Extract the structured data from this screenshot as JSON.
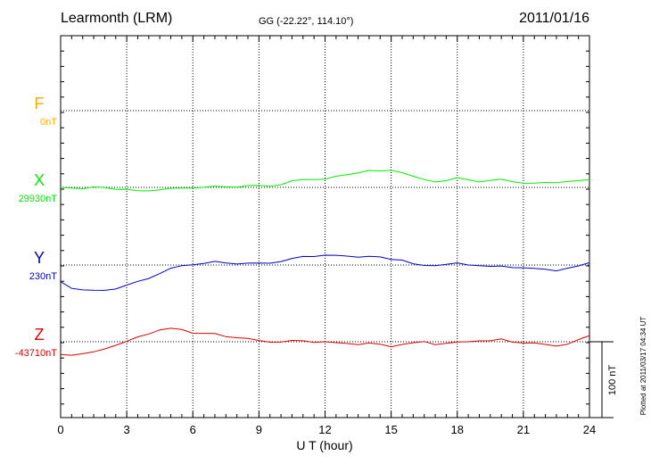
{
  "header": {
    "station": "Learmonth (LRM)",
    "coords": "GG (-22.22°, 114.10°)",
    "date": "2011/01/16"
  },
  "footer": {
    "plotted_note": "Plotted at 2011/03/17 04:34 UT"
  },
  "colors": {
    "F": "#ffaa00",
    "X": "#00ee00",
    "Y": "#0000cc",
    "Z": "#dd0000",
    "axis": "#000000",
    "grid": "#000000"
  },
  "chart_data": {
    "type": "line",
    "xlabel": "U T (hour)",
    "xlim": [
      0,
      24
    ],
    "x_ticks": [
      "0",
      "3",
      "6",
      "9",
      "12",
      "15",
      "18",
      "21",
      "24"
    ],
    "grid": true,
    "scale_bar_label": "100 nT",
    "series": [
      {
        "name": "F",
        "baseline_label": "0nT",
        "x": [],
        "y": []
      },
      {
        "name": "X",
        "baseline_label": "29930nT",
        "x": [
          0,
          0.5,
          1,
          1.5,
          2,
          2.5,
          3,
          3.5,
          4,
          4.5,
          5,
          5.5,
          6,
          6.5,
          7,
          7.5,
          8,
          8.5,
          9,
          9.5,
          10,
          10.5,
          11,
          11.5,
          12,
          12.5,
          13,
          13.5,
          14,
          14.5,
          15,
          15.5,
          16,
          16.5,
          17,
          17.5,
          18,
          18.5,
          19,
          19.5,
          20,
          20.5,
          21,
          21.5,
          22,
          22.5,
          23,
          23.5,
          24
        ],
        "y": [
          0,
          0,
          -2,
          0,
          0,
          -2,
          -3,
          -5,
          -4,
          -3,
          -2,
          -1,
          0,
          0,
          1,
          1,
          1,
          2,
          2,
          2,
          4,
          8,
          10,
          11,
          11,
          14,
          17,
          20,
          22,
          21,
          23,
          20,
          14,
          10,
          8,
          9,
          12,
          10,
          8,
          9,
          10,
          8,
          6,
          5,
          6,
          7,
          8,
          8,
          10
        ]
      },
      {
        "name": "Y",
        "baseline_label": "230nT",
        "x": [
          0,
          0.5,
          1,
          1.5,
          2,
          2.5,
          3,
          3.5,
          4,
          4.5,
          5,
          5.5,
          6,
          6.5,
          7,
          7.5,
          8,
          8.5,
          9,
          9.5,
          10,
          10.5,
          11,
          11.5,
          12,
          12.5,
          13,
          13.5,
          14,
          14.5,
          15,
          15.5,
          16,
          16.5,
          17,
          17.5,
          18,
          18.5,
          19,
          19.5,
          20,
          20.5,
          21,
          21.5,
          22,
          22.5,
          23,
          23.5,
          24
        ],
        "y": [
          -22,
          -30,
          -33,
          -34,
          -33,
          -31,
          -27,
          -22,
          -17,
          -11,
          -5,
          -1,
          1,
          2,
          4,
          3,
          2,
          2,
          2,
          3,
          5,
          8,
          11,
          12,
          13,
          12,
          12,
          11,
          11,
          10,
          8,
          7,
          1,
          -1,
          0,
          1,
          2,
          0,
          0,
          -2,
          -2,
          -3,
          -3,
          -5,
          -6,
          -7,
          -4,
          -2,
          3
        ]
      },
      {
        "name": "Z",
        "baseline_label": "-43710nT",
        "x": [
          0,
          0.5,
          1,
          1.5,
          2,
          2.5,
          3,
          3.5,
          4,
          4.5,
          5,
          5.5,
          6,
          6.5,
          7,
          7.5,
          8,
          8.5,
          9,
          9.5,
          10,
          10.5,
          11,
          11.5,
          12,
          12.5,
          13,
          13.5,
          14,
          14.5,
          15,
          15.5,
          16,
          16.5,
          17,
          17.5,
          18,
          18.5,
          19,
          19.5,
          20,
          20.5,
          21,
          21.5,
          22,
          22.5,
          23,
          23.5,
          24
        ],
        "y": [
          -17,
          -17,
          -16,
          -14,
          -9,
          -4,
          0,
          6,
          11,
          16,
          17,
          16,
          12,
          11,
          10,
          7,
          6,
          4,
          1,
          0,
          0,
          1,
          1,
          0,
          0,
          -2,
          -2,
          -3,
          -2,
          -4,
          -6,
          -3,
          -2,
          0,
          -3,
          -2,
          -1,
          0,
          2,
          1,
          3,
          0,
          -1,
          -2,
          -4,
          -5,
          -3,
          2,
          8
        ]
      }
    ]
  }
}
